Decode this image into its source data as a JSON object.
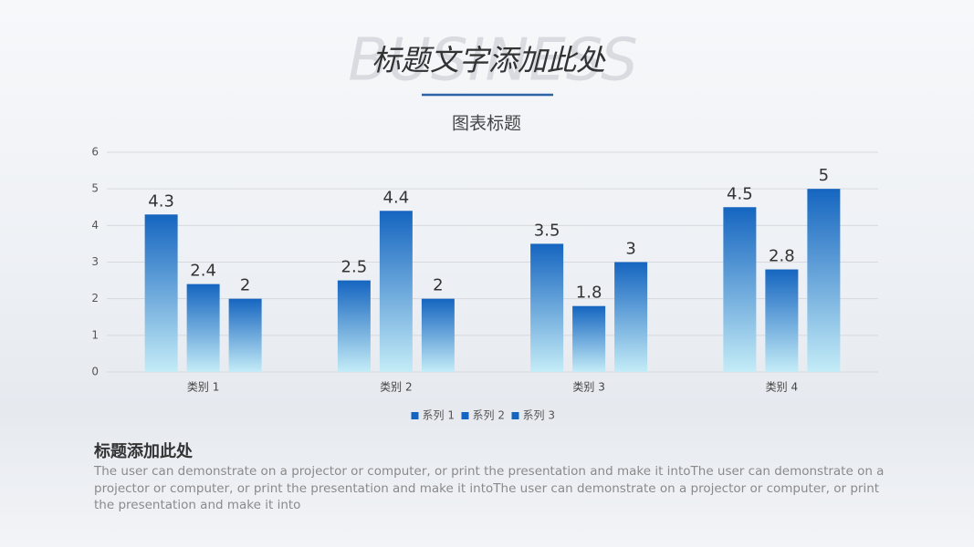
{
  "slide": {
    "watermark": "BUSINESS",
    "title": "标题文字添加此处",
    "heading": "标题添加此处",
    "body": "The user can demonstrate on a projector or computer, or print the presentation and make it intoThe user can demonstrate on a projector or computer, or print the presentation and make it intoThe user can demonstrate on a projector or computer, or print the presentation and make it into"
  },
  "chart_data": {
    "type": "bar",
    "title": "图表标题",
    "categories": [
      "类别 1",
      "类别 2",
      "类别 3",
      "类别 4"
    ],
    "series": [
      {
        "name": "系列 1",
        "color": "#1565c0",
        "values": [
          4.3,
          2.5,
          3.5,
          4.5
        ]
      },
      {
        "name": "系列 2",
        "color": "#1565c0",
        "values": [
          2.4,
          4.4,
          1.8,
          2.8
        ]
      },
      {
        "name": "系列 3",
        "color": "#1565c0",
        "values": [
          2,
          2,
          3,
          5
        ]
      }
    ],
    "ylim": [
      0,
      6
    ],
    "yticks": [
      0,
      1,
      2,
      3,
      4,
      5,
      6
    ],
    "grid": true,
    "legend": "bottom",
    "data_labels": true
  }
}
